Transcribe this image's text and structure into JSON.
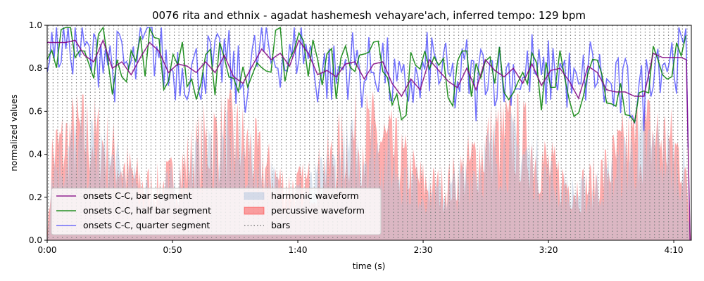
{
  "chart_data": {
    "type": "line",
    "title": "0076 rita and ethnix - agadat hashemesh vehayare'ach, inferred tempo: 129 bpm",
    "xlabel": "time (s)",
    "ylabel": "normalized values",
    "xlim": [
      0,
      257
    ],
    "ylim": [
      0,
      1
    ],
    "x_ticks": [
      {
        "value": 0,
        "label": "0:00"
      },
      {
        "value": 50,
        "label": "0:50"
      },
      {
        "value": 100,
        "label": "1:40"
      },
      {
        "value": 150,
        "label": "2:30"
      },
      {
        "value": 200,
        "label": "3:20"
      },
      {
        "value": 250,
        "label": "4:10"
      }
    ],
    "y_ticks": [
      0.0,
      0.2,
      0.4,
      0.6,
      0.8,
      1.0
    ],
    "bars": {
      "start": 0.5,
      "interval_s": 1.86,
      "end": 257
    },
    "legend_position": "lower-left",
    "series": [
      {
        "name": "onsets C-C, bar segment",
        "color": "#800080",
        "kind": "line",
        "x": [
          0,
          7.4,
          11.2,
          14.9,
          18.6,
          22.3,
          26.0,
          29.8,
          33.5,
          37.2,
          40.9,
          44.6,
          48.4,
          52.1,
          55.8,
          59.5,
          63.2,
          67.0,
          70.7,
          74.4,
          78.1,
          81.8,
          85.6,
          89.3,
          93.0,
          96.7,
          100.4,
          104.2,
          107.9,
          111.6,
          115.3,
          119.0,
          122.8,
          126.5,
          130.2,
          133.9,
          137.6,
          141.4,
          145.1,
          148.8,
          152.5,
          156.2,
          160.0,
          163.7,
          167.4,
          171.1,
          174.8,
          178.6,
          182.3,
          186.0,
          189.7,
          193.4,
          197.2,
          200.9,
          204.6,
          208.3,
          212.0,
          215.8,
          219.5,
          223.2,
          226.9,
          230.6,
          234.4,
          238.1,
          241.8,
          245.5,
          249.2,
          253.0,
          255.0,
          256.5
        ],
        "values": [
          0.92,
          0.92,
          0.93,
          0.86,
          0.83,
          0.93,
          0.8,
          0.83,
          0.77,
          0.85,
          0.92,
          0.88,
          0.78,
          0.82,
          0.81,
          0.78,
          0.83,
          0.78,
          0.86,
          0.76,
          0.73,
          0.81,
          0.89,
          0.84,
          0.87,
          0.81,
          0.93,
          0.87,
          0.77,
          0.79,
          0.76,
          0.82,
          0.83,
          0.75,
          0.82,
          0.83,
          0.73,
          0.67,
          0.75,
          0.7,
          0.84,
          0.79,
          0.74,
          0.71,
          0.8,
          0.7,
          0.84,
          0.79,
          0.76,
          0.8,
          0.73,
          0.82,
          0.72,
          0.79,
          0.8,
          0.74,
          0.66,
          0.81,
          0.78,
          0.7,
          0.69,
          0.69,
          0.67,
          0.67,
          0.87,
          0.85,
          0.85,
          0.85,
          0.84,
          0.0
        ]
      },
      {
        "name": "onsets C-C, half bar segment",
        "color": "#008000",
        "kind": "line"
      },
      {
        "name": "onsets C-C, quarter segment",
        "color": "#0000ff",
        "kind": "line"
      },
      {
        "name": "harmonic waveform",
        "color": "#b0c4de",
        "kind": "area"
      },
      {
        "name": "percussive waveform",
        "color": "#ff0000",
        "kind": "area"
      },
      {
        "name": "bars",
        "color": "#808080",
        "kind": "dotted-vline"
      }
    ]
  }
}
